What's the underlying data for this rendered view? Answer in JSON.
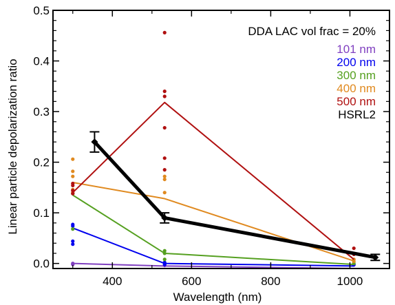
{
  "chart_data": {
    "type": "line",
    "title": "",
    "xlabel": "Wavelength (nm)",
    "ylabel": "Linear particle depolarization ratio",
    "xlim": [
      250,
      1100
    ],
    "ylim": [
      -0.01,
      0.5
    ],
    "xticks": [
      400,
      600,
      800,
      1000
    ],
    "xtick_labels": [
      "400",
      "600",
      "800",
      "1000"
    ],
    "yticks": [
      0.0,
      0.1,
      0.2,
      0.3,
      0.4,
      0.5
    ],
    "ytick_labels": [
      "0.0",
      "0.1",
      "0.2",
      "0.3",
      "0.4",
      "0.5"
    ],
    "grid": false,
    "annotation": "DDA LAC vol frac = 20%",
    "legend_position": "top-right",
    "series": [
      {
        "name": "101 nm",
        "color": "#8040c0",
        "x": [
          300,
          532,
          1010
        ],
        "values": [
          0.0,
          -0.005,
          -0.01
        ],
        "points": [
          [
            300,
            0.0
          ],
          [
            300,
            -0.002
          ],
          [
            532,
            -0.002
          ],
          [
            532,
            -0.004
          ],
          [
            1010,
            -0.003
          ]
        ]
      },
      {
        "name": "200 nm",
        "color": "#0000ee",
        "x": [
          300,
          532,
          1010
        ],
        "values": [
          0.07,
          0.0,
          -0.005
        ],
        "points": [
          [
            300,
            0.077
          ],
          [
            300,
            0.074
          ],
          [
            300,
            0.044
          ],
          [
            300,
            0.038
          ],
          [
            532,
            0.002
          ],
          [
            532,
            -0.002
          ],
          [
            1010,
            -0.002
          ]
        ]
      },
      {
        "name": "300 nm",
        "color": "#55a020",
        "x": [
          300,
          532,
          1010
        ],
        "values": [
          0.135,
          0.02,
          -0.002
        ],
        "points": [
          [
            300,
            0.138
          ],
          [
            300,
            0.068
          ],
          [
            532,
            0.025
          ],
          [
            532,
            0.02
          ],
          [
            532,
            0.008
          ],
          [
            1010,
            0.0
          ]
        ]
      },
      {
        "name": "400 nm",
        "color": "#e08a20",
        "x": [
          300,
          532,
          1010
        ],
        "values": [
          0.16,
          0.128,
          0.005
        ],
        "points": [
          [
            300,
            0.206
          ],
          [
            300,
            0.182
          ],
          [
            300,
            0.172
          ],
          [
            300,
            0.146
          ],
          [
            300,
            0.14
          ],
          [
            532,
            0.172
          ],
          [
            532,
            0.166
          ],
          [
            532,
            0.14
          ],
          [
            532,
            0.09
          ],
          [
            1010,
            0.008
          ],
          [
            1010,
            0.004
          ]
        ]
      },
      {
        "name": "500 nm",
        "color": "#b01010",
        "x": [
          300,
          532,
          1010
        ],
        "values": [
          0.14,
          0.318,
          0.008
        ],
        "points": [
          [
            300,
            0.158
          ],
          [
            300,
            0.154
          ],
          [
            300,
            0.144
          ],
          [
            300,
            0.138
          ],
          [
            532,
            0.456
          ],
          [
            532,
            0.34
          ],
          [
            532,
            0.33
          ],
          [
            532,
            0.268
          ],
          [
            532,
            0.208
          ],
          [
            532,
            0.185
          ],
          [
            1010,
            0.03
          ],
          [
            1010,
            0.018
          ]
        ]
      },
      {
        "name": "HSRL2",
        "color": "#000000",
        "x": [
          355,
          532,
          1064
        ],
        "values": [
          0.24,
          0.09,
          0.012
        ],
        "errors": [
          0.02,
          0.01,
          0.006
        ]
      }
    ]
  }
}
